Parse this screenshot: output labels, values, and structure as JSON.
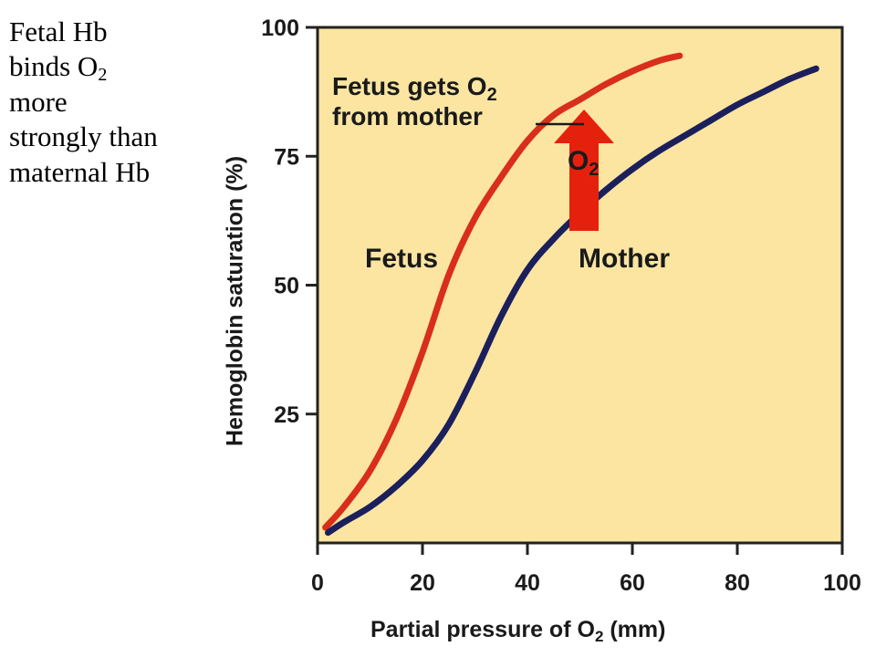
{
  "side_note": {
    "line1": "Fetal Hb",
    "line2_pre": "binds O",
    "line2_sub": "2",
    "line3": "more",
    "line4": "strongly than",
    "line5": "maternal Hb"
  },
  "colors": {
    "plot_bg": "#fbe5a1",
    "fetus": "#d92e1a",
    "mother": "#1b1f5c",
    "arrow": "#e5210e"
  },
  "chart_data": {
    "type": "line",
    "xlabel_pre": "Partial pressure of O",
    "xlabel_sub": "2",
    "xlabel_post": " (mm)",
    "ylabel": "Hemoglobin saturation (%)",
    "xlim": [
      0,
      100
    ],
    "ylim": [
      0,
      100
    ],
    "xticks": [
      0,
      20,
      40,
      60,
      80,
      100
    ],
    "yticks": [
      25,
      50,
      75,
      100
    ],
    "series": [
      {
        "name": "Fetus",
        "color": "#d92e1a",
        "points": [
          [
            1.5,
            3
          ],
          [
            5,
            7
          ],
          [
            10,
            14
          ],
          [
            15,
            24
          ],
          [
            20,
            37
          ],
          [
            25,
            52
          ],
          [
            30,
            63
          ],
          [
            35,
            71
          ],
          [
            40,
            78
          ],
          [
            45,
            83
          ],
          [
            50,
            86
          ],
          [
            55,
            89
          ],
          [
            60,
            91.5
          ],
          [
            65,
            93.5
          ],
          [
            69,
            94.5
          ]
        ]
      },
      {
        "name": "Mother",
        "color": "#1b1f5c",
        "points": [
          [
            2,
            2
          ],
          [
            5,
            4
          ],
          [
            10,
            7
          ],
          [
            15,
            11
          ],
          [
            20,
            16
          ],
          [
            25,
            23
          ],
          [
            30,
            33
          ],
          [
            35,
            44
          ],
          [
            40,
            53
          ],
          [
            45,
            59
          ],
          [
            50,
            64
          ],
          [
            55,
            68.5
          ],
          [
            60,
            72.5
          ],
          [
            65,
            76
          ],
          [
            70,
            79
          ],
          [
            75,
            82
          ],
          [
            80,
            85
          ],
          [
            85,
            87.5
          ],
          [
            90,
            90
          ],
          [
            95,
            92
          ]
        ]
      }
    ],
    "annotations": {
      "fetus_label": "Fetus",
      "mother_label": "Mother",
      "gets_line1_pre": "Fetus gets O",
      "gets_line1_sub": "2",
      "gets_line2": "from mother",
      "arrow_label_pre": "O",
      "arrow_label_sub": "2"
    }
  }
}
